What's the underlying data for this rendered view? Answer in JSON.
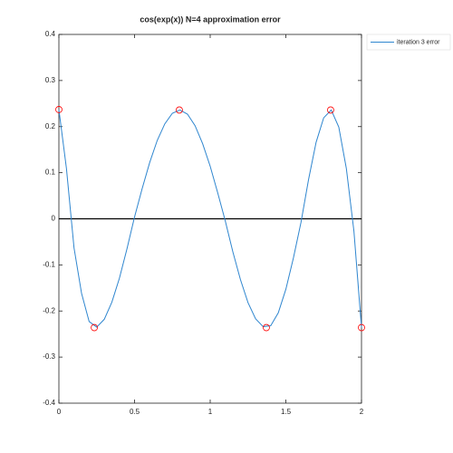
{
  "chart_data": {
    "type": "line",
    "title": "cos(exp(x)) N=4 approximation error",
    "x": [
      0,
      0.05,
      0.1,
      0.15,
      0.2,
      0.25,
      0.3,
      0.35,
      0.4,
      0.45,
      0.5,
      0.55,
      0.6,
      0.65,
      0.7,
      0.75,
      0.8,
      0.85,
      0.9,
      0.95,
      1.0,
      1.05,
      1.1,
      1.15,
      1.2,
      1.25,
      1.3,
      1.35,
      1.4,
      1.45,
      1.5,
      1.55,
      1.6,
      1.65,
      1.7,
      1.75,
      1.8,
      1.85,
      1.9,
      1.95,
      2.0
    ],
    "series": [
      {
        "name": "iteration 3 error",
        "color": "#2f86cf",
        "values": [
          0.237,
          0.109,
          -0.063,
          -0.162,
          -0.223,
          -0.235,
          -0.218,
          -0.181,
          -0.129,
          -0.065,
          0.004,
          0.065,
          0.122,
          0.17,
          0.206,
          0.229,
          0.236,
          0.227,
          0.202,
          0.163,
          0.114,
          0.056,
          -0.005,
          -0.072,
          -0.132,
          -0.182,
          -0.217,
          -0.234,
          -0.232,
          -0.204,
          -0.153,
          -0.085,
          -0.008,
          0.085,
          0.166,
          0.219,
          0.236,
          0.199,
          0.109,
          -0.027,
          -0.236
        ]
      }
    ],
    "markers": {
      "color": "#ff0000",
      "x": [
        0,
        0.234,
        0.796,
        1.371,
        1.796,
        2
      ],
      "values": [
        0.237,
        -0.236,
        0.236,
        -0.236,
        0.236,
        -0.236
      ]
    },
    "reference_line": {
      "value": 0,
      "color": "#000000"
    },
    "xlim": [
      0,
      2
    ],
    "xticks": [
      0,
      0.5,
      1,
      1.5,
      2
    ],
    "ylim": [
      -0.4,
      0.4
    ],
    "yticks": [
      -0.4,
      -0.3,
      -0.2,
      -0.1,
      0,
      0.1,
      0.2,
      0.3,
      0.4
    ],
    "legend": "outside-top-right"
  }
}
